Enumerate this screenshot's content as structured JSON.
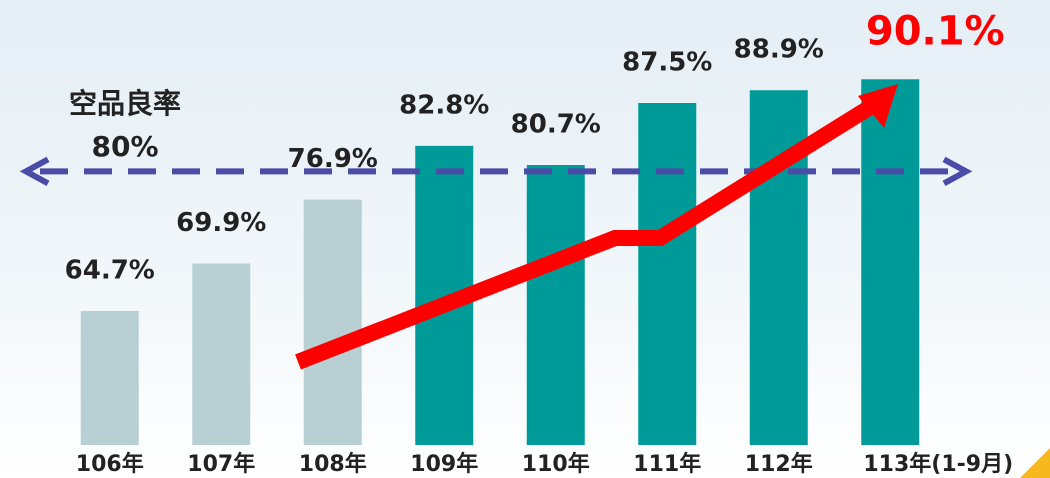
{
  "chart_data": {
    "type": "bar",
    "categories": [
      "106年",
      "107年",
      "108年",
      "109年",
      "110年",
      "111年",
      "112年",
      "113年(1-9月)"
    ],
    "values": [
      64.7,
      69.9,
      76.9,
      82.8,
      80.7,
      87.5,
      88.9,
      90.1
    ],
    "value_labels": [
      "64.7%",
      "69.9%",
      "76.9%",
      "82.8%",
      "80.7%",
      "87.5%",
      "88.9%",
      "90.1%"
    ],
    "colors": [
      "#b8cfd3",
      "#b8cfd3",
      "#b8cfd3",
      "#009b98",
      "#009b98",
      "#009b98",
      "#009b98",
      "#009b98"
    ],
    "highlight_label_color": "#ff0000",
    "reference_line": {
      "value": 80,
      "label": "空品良率",
      "value_label": "80%",
      "color": "#4b4ba8"
    },
    "ylim": [
      50,
      100
    ]
  }
}
